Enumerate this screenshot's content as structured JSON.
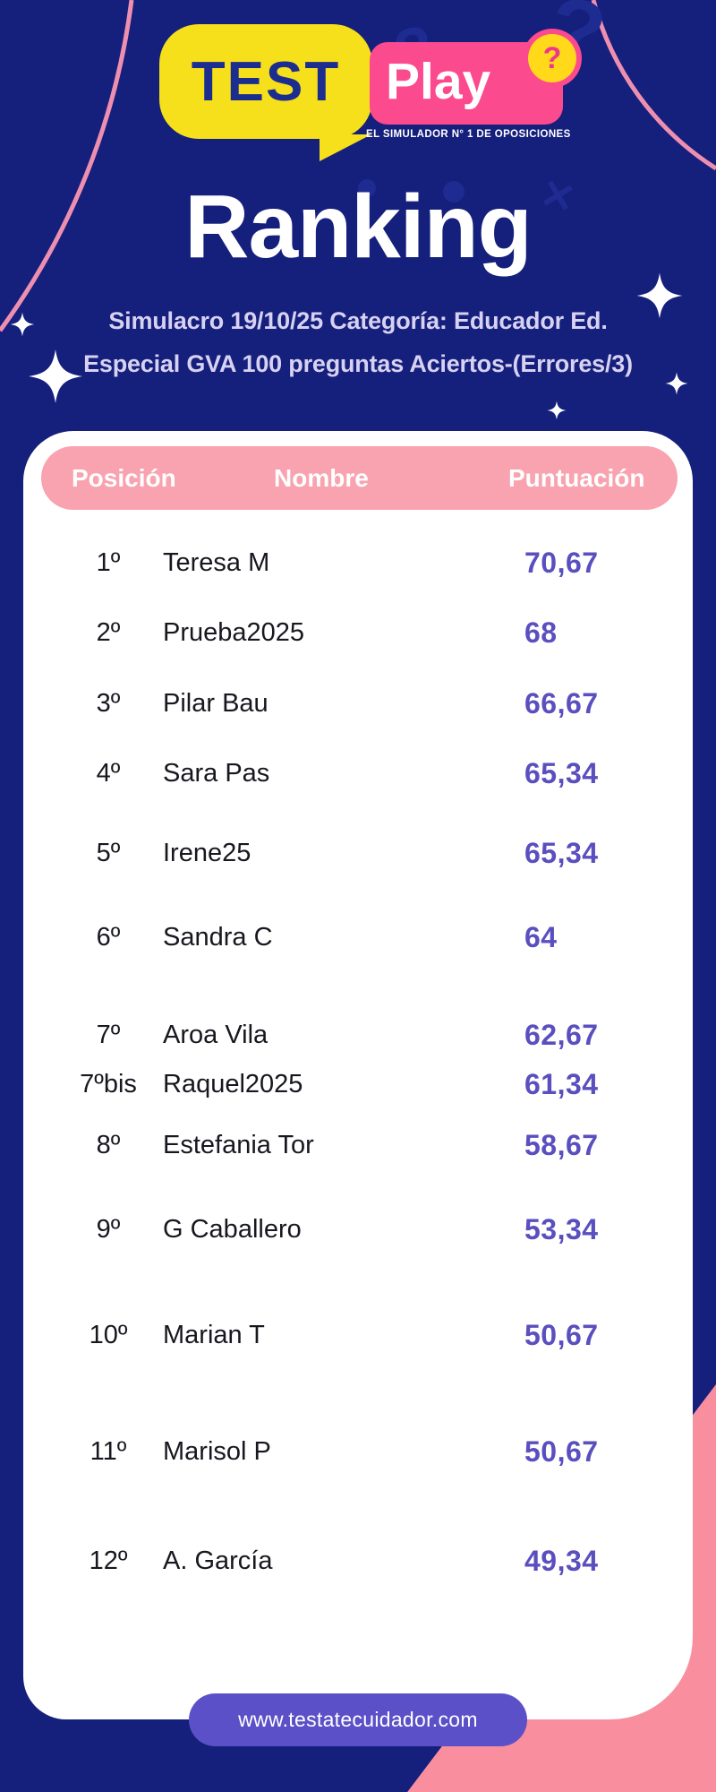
{
  "logo": {
    "test": "TEST",
    "play": "Play",
    "badge": "?",
    "tagline": "EL SIMULADOR N° 1 DE OPOSICIONES"
  },
  "title": "Ranking",
  "subtitle": {
    "line1": "Simulacro 19/10/25 Categoría: Educador Ed.",
    "line2": "Especial GVA 100 preguntas  Aciertos-(Errores/3)"
  },
  "table": {
    "headers": {
      "position": "Posición",
      "name": "Nombre",
      "score": "Puntuación"
    },
    "rows": [
      {
        "position": "1º",
        "name": "Teresa M",
        "score": "70,67"
      },
      {
        "position": "2º",
        "name": "Prueba2025",
        "score": "68"
      },
      {
        "position": "3º",
        "name": "Pilar Bau",
        "score": "66,67"
      },
      {
        "position": "4º",
        "name": "Sara Pas",
        "score": "65,34"
      },
      {
        "position": "5º",
        "name": "Irene25",
        "score": "65,34"
      },
      {
        "position": "6º",
        "name": "Sandra C",
        "score": "64"
      },
      {
        "position": "7º",
        "name": "Aroa Vila",
        "score": "62,67"
      },
      {
        "position": "7ºbis",
        "name": "Raquel2025",
        "score": "61,34"
      },
      {
        "position": "8º",
        "name": "Estefania Tor",
        "score": "58,67"
      },
      {
        "position": "9º",
        "name": "G Caballero",
        "score": "53,34"
      },
      {
        "position": "10º",
        "name": "Marian T",
        "score": "50,67"
      },
      {
        "position": "11º",
        "name": "Marisol P",
        "score": "50,67"
      },
      {
        "position": "12º",
        "name": "A. García",
        "score": "49,34"
      }
    ]
  },
  "footer": {
    "website": "www.testatecuidador.com"
  },
  "colors": {
    "background": "#151f7c",
    "brand_yellow": "#f6df1b",
    "brand_pink": "#fb4a8e",
    "brand_blue_text": "#1c2d90",
    "header_pink": "#f8a3af",
    "score_purple": "#5a4fbe",
    "pill_purple": "#5b50c7",
    "bottom_pink": "#f98e9e",
    "subtitle_lavender": "#d7d2f2",
    "card_white": "#ffffff"
  },
  "chart_data": {
    "type": "table",
    "title": "Ranking",
    "subtitle": "Simulacro 19/10/25 Categoría: Educador Ed. Especial GVA 100 preguntas Aciertos-(Errores/3)",
    "columns": [
      "Posición",
      "Nombre",
      "Puntuación"
    ],
    "rows": [
      [
        "1º",
        "Teresa M",
        70.67
      ],
      [
        "2º",
        "Prueba2025",
        68
      ],
      [
        "3º",
        "Pilar Bau",
        66.67
      ],
      [
        "4º",
        "Sara Pas",
        65.34
      ],
      [
        "5º",
        "Irene25",
        65.34
      ],
      [
        "6º",
        "Sandra C",
        64
      ],
      [
        "7º",
        "Aroa Vila",
        62.67
      ],
      [
        "7ºbis",
        "Raquel2025",
        61.34
      ],
      [
        "8º",
        "Estefania Tor",
        58.67
      ],
      [
        "9º",
        "G Caballero",
        53.34
      ],
      [
        "10º",
        "Marian T",
        50.67
      ],
      [
        "11º",
        "Marisol P",
        50.67
      ],
      [
        "12º",
        "A. García",
        49.34
      ]
    ]
  }
}
